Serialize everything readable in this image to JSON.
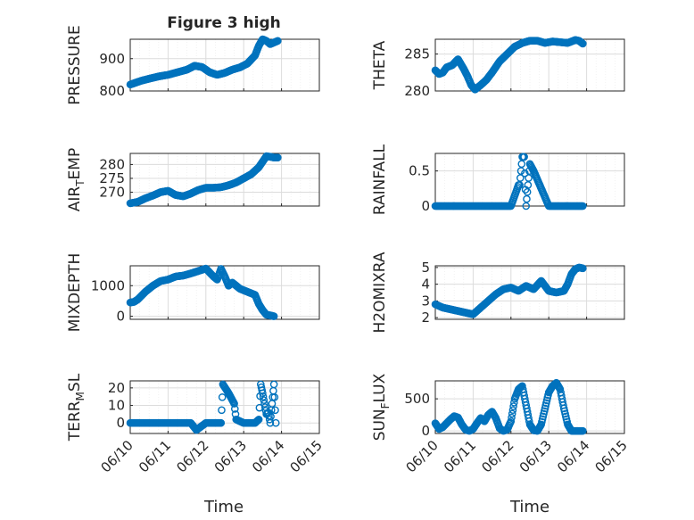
{
  "figure": {
    "title": "Figure 3 high",
    "xlabel_left": "Time",
    "xlabel_right": "Time"
  },
  "colors": {
    "marker": "#0072BD",
    "axis": "#262626",
    "grid": "#dcdcdc"
  },
  "chart_data": [
    {
      "type": "scatter",
      "ylabel": "PRESSURE",
      "xlim": [
        "06/10",
        "06/15"
      ],
      "ylim": [
        800,
        960
      ],
      "yticks": [
        "800",
        "900"
      ],
      "grid": true,
      "series": [
        {
          "x": [
            0.0,
            0.15,
            0.3,
            0.5,
            0.75,
            1.0,
            1.25,
            1.5,
            1.7,
            1.9,
            2.1,
            2.3,
            2.5,
            2.7,
            2.9,
            3.1,
            3.3,
            3.4,
            3.5,
            3.6,
            3.7,
            3.8,
            3.9
          ],
          "y": [
            820,
            826,
            832,
            838,
            845,
            850,
            858,
            866,
            878,
            874,
            858,
            850,
            856,
            866,
            873,
            885,
            910,
            940,
            960,
            955,
            945,
            950,
            955
          ]
        }
      ]
    },
    {
      "type": "scatter",
      "ylabel": "THETA",
      "xlim": [
        "06/10",
        "06/15"
      ],
      "ylim": [
        280,
        287
      ],
      "yticks": [
        "280",
        "285"
      ],
      "grid": true,
      "series": [
        {
          "x": [
            0.0,
            0.1,
            0.2,
            0.3,
            0.45,
            0.6,
            0.75,
            0.85,
            0.95,
            1.05,
            1.2,
            1.35,
            1.5,
            1.7,
            1.9,
            2.1,
            2.3,
            2.5,
            2.7,
            2.9,
            3.1,
            3.3,
            3.5,
            3.7,
            3.8,
            3.9
          ],
          "y": [
            282.8,
            282.3,
            282.5,
            283.2,
            283.5,
            284.3,
            283.0,
            282.0,
            280.8,
            280.2,
            280.8,
            281.5,
            282.5,
            284.0,
            285.0,
            286.0,
            286.5,
            286.8,
            286.8,
            286.5,
            286.7,
            286.6,
            286.5,
            286.9,
            286.8,
            286.4
          ]
        }
      ]
    },
    {
      "type": "scatter",
      "ylabel": "AIR_TEMP",
      "xlim": [
        "06/10",
        "06/15"
      ],
      "ylim": [
        265,
        284
      ],
      "yticks": [
        "270",
        "275",
        "280"
      ],
      "grid": true,
      "series": [
        {
          "x": [
            0.0,
            0.2,
            0.4,
            0.6,
            0.8,
            1.0,
            1.2,
            1.4,
            1.6,
            1.8,
            2.0,
            2.2,
            2.4,
            2.6,
            2.8,
            3.0,
            3.2,
            3.4,
            3.5,
            3.6,
            3.7,
            3.8,
            3.9
          ],
          "y": [
            266,
            266.5,
            267.8,
            268.8,
            270,
            270.5,
            269,
            268.5,
            269.5,
            270.8,
            271.6,
            271.6,
            271.8,
            272.5,
            273.5,
            275,
            276.5,
            279,
            281,
            283,
            282.8,
            282.5,
            282.5
          ]
        }
      ]
    },
    {
      "type": "scatter",
      "ylabel": "RAINFALL",
      "xlim": [
        "06/10",
        "06/15"
      ],
      "ylim": [
        0,
        0.75
      ],
      "yticks": [
        "0",
        "0.5"
      ],
      "grid": true,
      "series": [
        {
          "x": [
            0.0,
            0.4,
            0.8,
            1.2,
            1.6,
            2.0,
            2.2,
            2.23,
            2.3,
            2.35,
            2.4,
            2.5,
            2.6,
            3.0,
            3.5,
            3.9
          ],
          "y": [
            0,
            0,
            0,
            0,
            0,
            0,
            0.3,
            0.3,
            0.7,
            0.7,
            0,
            0.6,
            0.5,
            0,
            0,
            0
          ]
        }
      ]
    },
    {
      "type": "scatter",
      "ylabel": "MIXDEPTH",
      "xlim": [
        "06/10",
        "06/15"
      ],
      "ylim": [
        -100,
        1650
      ],
      "yticks": [
        "0",
        "1000"
      ],
      "grid": true,
      "series": [
        {
          "x": [
            0.0,
            0.1,
            0.2,
            0.4,
            0.6,
            0.8,
            1.0,
            1.2,
            1.4,
            1.6,
            1.8,
            2.0,
            2.2,
            2.3,
            2.4,
            2.5,
            2.6,
            2.7,
            2.9,
            3.1,
            3.3,
            3.4,
            3.5,
            3.6,
            3.7,
            3.8
          ],
          "y": [
            450,
            470,
            550,
            800,
            1000,
            1150,
            1200,
            1300,
            1330,
            1400,
            1480,
            1560,
            1300,
            1200,
            1550,
            1300,
            1000,
            1100,
            900,
            800,
            700,
            400,
            200,
            50,
            30,
            0
          ]
        }
      ]
    },
    {
      "type": "scatter",
      "ylabel": "H2OMIXRA",
      "xlim": [
        "06/10",
        "06/15"
      ],
      "ylim": [
        1.9,
        5.1
      ],
      "yticks": [
        "2",
        "3",
        "4",
        "5"
      ],
      "grid": true,
      "series": [
        {
          "x": [
            0.0,
            0.2,
            0.4,
            0.6,
            0.8,
            1.0,
            1.2,
            1.4,
            1.6,
            1.8,
            2.0,
            2.2,
            2.4,
            2.6,
            2.8,
            3.0,
            3.2,
            3.4,
            3.5,
            3.6,
            3.7,
            3.8,
            3.9
          ],
          "y": [
            2.8,
            2.6,
            2.5,
            2.4,
            2.3,
            2.2,
            2.6,
            3.0,
            3.4,
            3.7,
            3.8,
            3.6,
            3.9,
            3.7,
            4.2,
            3.6,
            3.5,
            3.6,
            4.0,
            4.6,
            4.9,
            5.0,
            4.95
          ]
        }
      ]
    },
    {
      "type": "scatter",
      "ylabel": "TERR_MSL",
      "xlim": [
        "06/10",
        "06/15"
      ],
      "ylim": [
        -6,
        24
      ],
      "yticks": [
        "0",
        "10",
        "20"
      ],
      "grid": true,
      "series": [
        {
          "x": [
            0.0,
            0.4,
            0.8,
            1.2,
            1.6,
            1.75,
            2.0,
            2.4,
            2.45,
            2.6,
            2.75,
            2.8,
            3.0,
            3.3,
            3.4,
            3.45,
            3.5,
            3.55,
            3.6,
            3.65,
            3.7,
            3.8,
            3.85
          ],
          "y": [
            0,
            0,
            0,
            0,
            0,
            -4,
            0,
            0,
            22,
            17,
            11,
            2,
            0,
            0,
            2,
            22,
            17,
            11,
            5,
            6,
            0,
            22,
            0
          ]
        }
      ]
    },
    {
      "type": "scatter",
      "ylabel": "SUN_FLUX",
      "xlim": [
        "06/10",
        "06/15"
      ],
      "ylim": [
        -40,
        780
      ],
      "yticks": [
        "0",
        "500"
      ],
      "grid": true,
      "series": [
        {
          "x": [
            0.0,
            0.1,
            0.2,
            0.3,
            0.4,
            0.5,
            0.6,
            0.7,
            0.8,
            0.9,
            1.0,
            1.1,
            1.2,
            1.3,
            1.4,
            1.5,
            1.6,
            1.7,
            1.8,
            1.9,
            2.0,
            2.1,
            2.2,
            2.3,
            2.4,
            2.5,
            2.6,
            2.7,
            2.8,
            2.9,
            3.0,
            3.1,
            3.2,
            3.3,
            3.4,
            3.5,
            3.6,
            3.7,
            3.8,
            3.9
          ],
          "y": [
            120,
            30,
            60,
            120,
            180,
            230,
            210,
            100,
            20,
            0,
            30,
            120,
            200,
            150,
            250,
            300,
            200,
            40,
            0,
            20,
            150,
            500,
            650,
            700,
            400,
            100,
            10,
            0,
            100,
            350,
            600,
            700,
            750,
            650,
            350,
            100,
            0,
            0,
            0,
            0
          ]
        }
      ]
    }
  ]
}
